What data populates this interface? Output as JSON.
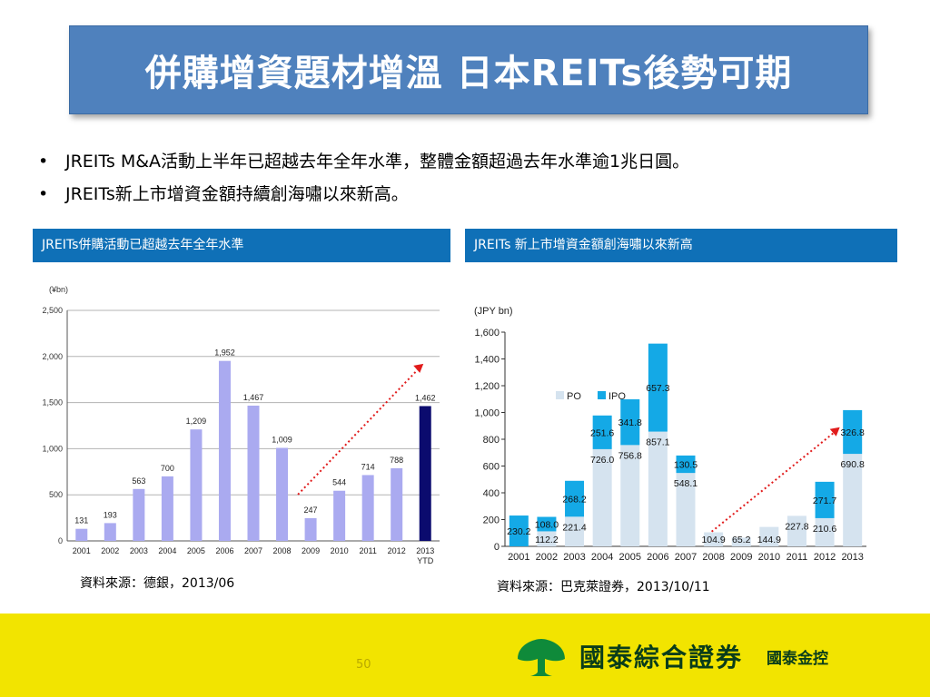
{
  "title": "併購增資題材增溫 日本REITs後勢可期",
  "bullets": [
    "JREITs  M&A活動上半年已超越去年全年水準，整體金額超過去年水準逾1兆日圓。",
    "JREITs新上市增資金額持續創海嘯以來新高。"
  ],
  "left_panel": {
    "header": "JREITs併購活動已超越去年全年水準",
    "source": "資料來源：德銀，2013/06"
  },
  "right_panel": {
    "header": "JREITs 新上市增資金額創海嘯以來新高",
    "source": "資料來源：巴克萊證券，2013/10/11"
  },
  "footer": {
    "page_number": "50",
    "brand": "國泰綜合證券",
    "group": "國泰金控"
  },
  "colors": {
    "title_bg": "#4f81bd",
    "panel_header_bg": "#0f70b7",
    "footer_bg": "#f2e400",
    "bar_light": "#aaaaf0",
    "bar_dark": "#0b0b6e",
    "po": "#d5e3ef",
    "ipo": "#14a9e6",
    "arrow": "#e11b1b",
    "logo_green": "#0f8a3a"
  },
  "chart_data": [
    {
      "type": "bar",
      "unit_label": "(¥bn)",
      "categories": [
        "2001",
        "2002",
        "2003",
        "2004",
        "2005",
        "2006",
        "2007",
        "2008",
        "2009",
        "2010",
        "2011",
        "2012",
        "2013\nYTD"
      ],
      "values": [
        131,
        193,
        563,
        700,
        1209,
        1952,
        1467,
        1009,
        247,
        544,
        714,
        788,
        1462
      ],
      "data_labels": [
        "131",
        "193",
        "563",
        "700",
        "1,209",
        "1,952",
        "1,467",
        "1,009",
        "247",
        "544",
        "714",
        "788",
        "1,462"
      ],
      "highlight_index": 12,
      "ylim": [
        0,
        2500
      ],
      "yticks": [
        0,
        500,
        1000,
        1500,
        2000,
        2500
      ],
      "ytick_labels": [
        "0",
        "500",
        "1,000",
        "1,500",
        "2,000",
        "2,500"
      ],
      "grid": true,
      "annotation": "dotted red trend arrow from 2009 to 2013"
    },
    {
      "type": "bar",
      "stacked": true,
      "unit_label": "(JPY bn)",
      "categories": [
        "2001",
        "2002",
        "2003",
        "2004",
        "2005",
        "2006",
        "2007",
        "2008",
        "2009",
        "2010",
        "2011",
        "2012",
        "2013"
      ],
      "series": [
        {
          "name": "PO",
          "values": [
            0,
            112.2,
            221.4,
            726.0,
            756.8,
            857.1,
            548.1,
            104.9,
            65.2,
            144.9,
            227.8,
            210.6,
            690.8
          ],
          "labels": [
            "",
            "112.2",
            "221.4",
            "726.0",
            "756.8",
            "857.1",
            "548.1",
            "104.9",
            "65.2",
            "144.9",
            "227.8",
            "210.6",
            "690.8"
          ]
        },
        {
          "name": "IPO",
          "values": [
            230.2,
            108.0,
            268.2,
            251.6,
            341.8,
            657.3,
            130.5,
            0,
            0,
            0,
            0,
            271.7,
            326.8
          ],
          "labels": [
            "230.2",
            "108.0",
            "268.2",
            "251.6",
            "341.8",
            "657.3",
            "130.5",
            "",
            "",
            "",
            "",
            "271.7",
            "326.8"
          ]
        }
      ],
      "ylim": [
        0,
        1600
      ],
      "yticks": [
        0,
        200,
        400,
        600,
        800,
        1000,
        1200,
        1400,
        1600
      ],
      "ytick_labels": [
        "0",
        "200",
        "400",
        "600",
        "800",
        "1,000",
        "1,200",
        "1,400",
        "1,600"
      ],
      "grid": false,
      "legend": "top-left",
      "annotation": "dotted red trend arrow from 2008 to 2013"
    }
  ]
}
